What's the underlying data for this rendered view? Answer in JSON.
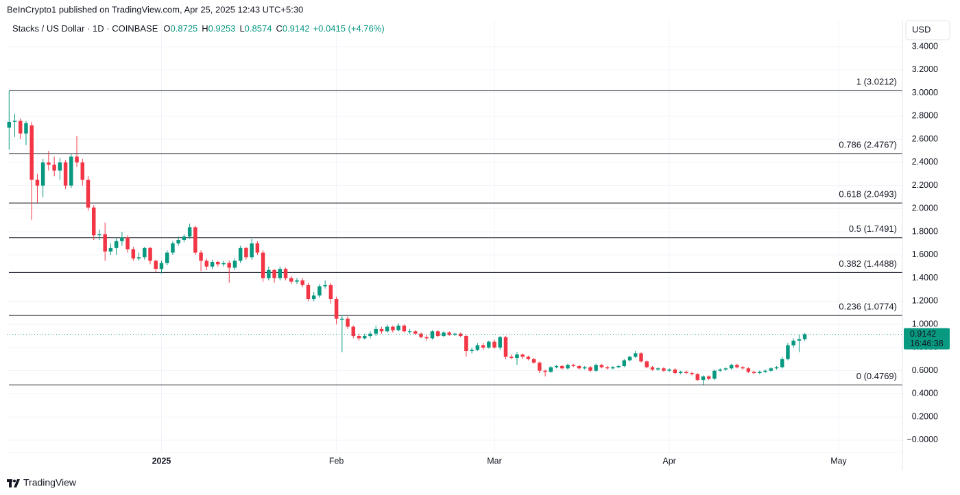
{
  "chart_data": {
    "type": "candlestick",
    "published": "BeInCrypto1 published on TradingView.com, Apr 25, 2025 12:43 UTC+5:30",
    "symbol": "Stacks / US Dollar · 1D · COINBASE",
    "ohlc": [
      {
        "key": "O",
        "value": 0.8725
      },
      {
        "key": "H",
        "value": 0.9253
      },
      {
        "key": "L",
        "value": 0.8574
      },
      {
        "key": "C",
        "value": 0.9142
      }
    ],
    "change": "+0.0415 (+4.76%)",
    "currency": "USD",
    "up_color": "#089981",
    "down_color": "#f23645",
    "grid": true,
    "open": [
      2.7,
      2.75,
      2.76,
      2.65,
      2.72,
      2.25,
      2.2,
      2.4,
      2.38,
      2.33,
      2.4,
      2.2,
      2.45,
      2.4,
      2.25,
      2.01,
      1.77,
      1.78,
      1.63,
      1.66,
      1.72,
      1.75,
      1.65,
      1.57,
      1.58,
      1.66,
      1.55,
      1.48,
      1.53,
      1.62,
      1.7,
      1.73,
      1.76,
      1.84,
      1.62,
      1.55,
      1.5,
      1.54,
      1.52,
      1.53,
      1.49,
      1.55,
      1.66,
      1.58,
      1.7,
      1.62,
      1.4,
      1.47,
      1.4,
      1.48,
      1.4,
      1.37,
      1.38,
      1.34,
      1.22,
      1.25,
      1.33,
      1.34,
      1.22,
      1.04,
      1.05,
      0.98,
      0.9,
      0.88,
      0.9,
      0.92,
      0.96,
      0.94,
      0.98,
      0.95,
      0.99,
      0.94,
      0.94,
      0.92,
      0.89,
      0.88,
      0.94,
      0.9,
      0.93,
      0.91,
      0.92,
      0.9,
      0.77,
      0.78,
      0.82,
      0.8,
      0.85,
      0.8,
      0.89,
      0.72,
      0.71,
      0.74,
      0.72,
      0.7,
      0.67,
      0.6,
      0.59,
      0.63,
      0.64,
      0.62,
      0.65,
      0.64,
      0.62,
      0.63,
      0.6,
      0.65,
      0.63,
      0.62,
      0.63,
      0.64,
      0.69,
      0.72,
      0.75,
      0.68,
      0.63,
      0.61,
      0.62,
      0.6,
      0.61,
      0.58,
      0.59,
      0.58,
      0.57,
      0.52,
      0.55,
      0.53,
      0.6,
      0.61,
      0.62,
      0.65,
      0.63,
      0.62,
      0.59,
      0.58,
      0.59,
      0.6,
      0.62,
      0.63,
      0.7,
      0.82,
      0.86,
      0.8725
    ],
    "high": [
      3.02,
      2.82,
      2.78,
      2.76,
      2.75,
      2.3,
      2.43,
      2.5,
      2.45,
      2.44,
      2.42,
      2.47,
      2.63,
      2.43,
      2.28,
      2.03,
      1.82,
      1.88,
      1.7,
      1.75,
      1.8,
      1.77,
      1.67,
      1.62,
      1.67,
      1.67,
      1.56,
      1.55,
      1.64,
      1.72,
      1.76,
      1.78,
      1.87,
      1.85,
      1.64,
      1.57,
      1.56,
      1.55,
      1.55,
      1.55,
      1.57,
      1.68,
      1.67,
      1.74,
      1.72,
      1.64,
      1.5,
      1.48,
      1.5,
      1.49,
      1.42,
      1.4,
      1.4,
      1.36,
      1.28,
      1.35,
      1.38,
      1.36,
      1.24,
      1.08,
      1.07,
      0.99,
      0.92,
      0.92,
      0.94,
      0.99,
      0.98,
      1.0,
      0.99,
      1.01,
      1.0,
      0.96,
      0.95,
      0.93,
      0.91,
      0.95,
      0.95,
      0.94,
      0.94,
      0.93,
      0.93,
      0.91,
      0.8,
      0.84,
      0.84,
      0.86,
      0.87,
      0.9,
      0.9,
      0.74,
      0.76,
      0.75,
      0.73,
      0.71,
      0.68,
      0.61,
      0.64,
      0.65,
      0.65,
      0.66,
      0.66,
      0.65,
      0.64,
      0.64,
      0.66,
      0.66,
      0.64,
      0.64,
      0.65,
      0.7,
      0.73,
      0.77,
      0.76,
      0.69,
      0.64,
      0.63,
      0.63,
      0.62,
      0.62,
      0.6,
      0.6,
      0.59,
      0.58,
      0.56,
      0.56,
      0.61,
      0.62,
      0.63,
      0.66,
      0.66,
      0.64,
      0.63,
      0.6,
      0.6,
      0.61,
      0.63,
      0.64,
      0.72,
      0.84,
      0.88,
      0.91,
      0.9253
    ],
    "low": [
      2.51,
      2.62,
      2.6,
      2.55,
      1.9,
      2.05,
      2.1,
      2.33,
      2.28,
      2.25,
      2.17,
      2.18,
      2.36,
      2.2,
      1.98,
      1.73,
      1.73,
      1.55,
      1.6,
      1.6,
      1.68,
      1.62,
      1.55,
      1.55,
      1.56,
      1.52,
      1.45,
      1.44,
      1.51,
      1.6,
      1.68,
      1.71,
      1.74,
      1.6,
      1.46,
      1.47,
      1.48,
      1.5,
      1.5,
      1.36,
      1.47,
      1.53,
      1.56,
      1.56,
      1.6,
      1.37,
      1.38,
      1.36,
      1.38,
      1.38,
      1.35,
      1.35,
      1.32,
      1.2,
      1.2,
      1.23,
      1.31,
      1.18,
      1.0,
      0.76,
      0.96,
      0.88,
      0.86,
      0.87,
      0.88,
      0.9,
      0.92,
      0.93,
      0.93,
      0.94,
      0.93,
      0.92,
      0.91,
      0.88,
      0.86,
      0.87,
      0.89,
      0.89,
      0.9,
      0.9,
      0.89,
      0.72,
      0.75,
      0.77,
      0.78,
      0.79,
      0.79,
      0.78,
      0.7,
      0.7,
      0.65,
      0.7,
      0.69,
      0.66,
      0.58,
      0.55,
      0.58,
      0.62,
      0.61,
      0.61,
      0.63,
      0.61,
      0.61,
      0.59,
      0.59,
      0.62,
      0.61,
      0.61,
      0.62,
      0.63,
      0.68,
      0.71,
      0.67,
      0.62,
      0.6,
      0.6,
      0.59,
      0.59,
      0.57,
      0.57,
      0.57,
      0.56,
      0.51,
      0.48,
      0.52,
      0.52,
      0.59,
      0.6,
      0.61,
      0.62,
      0.61,
      0.58,
      0.57,
      0.57,
      0.58,
      0.59,
      0.61,
      0.62,
      0.69,
      0.8,
      0.76,
      0.8574
    ],
    "close": [
      2.75,
      2.76,
      2.65,
      2.74,
      2.25,
      2.2,
      2.4,
      2.38,
      2.33,
      2.4,
      2.2,
      2.45,
      2.4,
      2.25,
      2.01,
      1.77,
      1.78,
      1.63,
      1.66,
      1.72,
      1.75,
      1.65,
      1.57,
      1.58,
      1.66,
      1.55,
      1.48,
      1.53,
      1.62,
      1.7,
      1.73,
      1.76,
      1.84,
      1.62,
      1.55,
      1.5,
      1.54,
      1.52,
      1.53,
      1.49,
      1.55,
      1.66,
      1.58,
      1.7,
      1.62,
      1.4,
      1.47,
      1.4,
      1.48,
      1.4,
      1.37,
      1.38,
      1.34,
      1.22,
      1.25,
      1.33,
      1.34,
      1.22,
      1.05,
      1.05,
      0.98,
      0.9,
      0.88,
      0.9,
      0.92,
      0.96,
      0.94,
      0.98,
      0.95,
      0.99,
      0.94,
      0.94,
      0.92,
      0.89,
      0.88,
      0.94,
      0.9,
      0.93,
      0.91,
      0.92,
      0.9,
      0.77,
      0.78,
      0.82,
      0.8,
      0.85,
      0.8,
      0.89,
      0.72,
      0.71,
      0.74,
      0.72,
      0.7,
      0.67,
      0.6,
      0.59,
      0.63,
      0.64,
      0.62,
      0.65,
      0.64,
      0.62,
      0.63,
      0.6,
      0.65,
      0.63,
      0.62,
      0.63,
      0.64,
      0.69,
      0.72,
      0.75,
      0.68,
      0.63,
      0.61,
      0.62,
      0.6,
      0.61,
      0.58,
      0.59,
      0.58,
      0.57,
      0.52,
      0.55,
      0.53,
      0.6,
      0.61,
      0.62,
      0.65,
      0.63,
      0.62,
      0.59,
      0.58,
      0.59,
      0.6,
      0.62,
      0.63,
      0.7,
      0.82,
      0.86,
      0.8725,
      0.9142
    ],
    "xlim": [
      -0.4,
      158.3
    ],
    "xticks": [
      {
        "value": 27,
        "label": "2025"
      },
      {
        "value": 58,
        "label": "Feb"
      },
      {
        "value": 86,
        "label": "Mar"
      },
      {
        "value": 117,
        "label": "Apr"
      },
      {
        "value": 147,
        "label": "May"
      }
    ],
    "ylim": [
      -0.107,
      3.626
    ],
    "yticks": [
      {
        "value": 0,
        "label": "−0.0000"
      },
      {
        "value": 0.2,
        "label": "0.2000"
      },
      {
        "value": 0.4,
        "label": "0.4000"
      },
      {
        "value": 0.6,
        "label": "0.6000"
      },
      {
        "value": 0.8,
        "label": "0.8000"
      },
      {
        "value": 1.0,
        "label": "1.0000"
      },
      {
        "value": 1.2,
        "label": "1.2000"
      },
      {
        "value": 1.4,
        "label": "1.4000"
      },
      {
        "value": 1.6,
        "label": "1.6000"
      },
      {
        "value": 1.8,
        "label": "1.8000"
      },
      {
        "value": 2.0,
        "label": "2.0000"
      },
      {
        "value": 2.2,
        "label": "2.2000"
      },
      {
        "value": 2.4,
        "label": "2.4000"
      },
      {
        "value": 2.6,
        "label": "2.6000"
      },
      {
        "value": 2.8,
        "label": "2.8000"
      },
      {
        "value": 3.0,
        "label": "3.0000"
      },
      {
        "value": 3.2,
        "label": "3.2000"
      },
      {
        "value": 3.4,
        "label": "3.4000"
      }
    ],
    "fib_levels": [
      {
        "label": "1 (3.0212)",
        "value": 3.0212
      },
      {
        "label": "0.786 (2.4767)",
        "value": 2.4767
      },
      {
        "label": "0.618 (2.0493)",
        "value": 2.0493
      },
      {
        "label": "0.5 (1.7491)",
        "value": 1.7491
      },
      {
        "label": "0.382 (1.4488)",
        "value": 1.4488
      },
      {
        "label": "0.236 (1.0774)",
        "value": 1.0774
      },
      {
        "label": "0 (0.4769)",
        "value": 0.4769
      }
    ],
    "last_price": 0.9142,
    "countdown": "16:46:38",
    "brand": "TradingView"
  }
}
